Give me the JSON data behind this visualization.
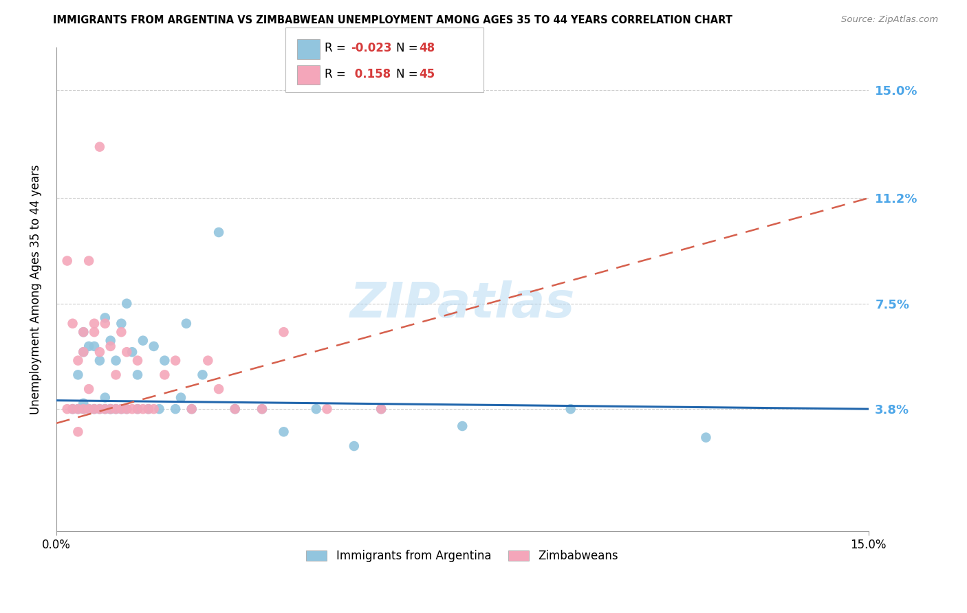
{
  "title": "IMMIGRANTS FROM ARGENTINA VS ZIMBABWEAN UNEMPLOYMENT AMONG AGES 35 TO 44 YEARS CORRELATION CHART",
  "source": "Source: ZipAtlas.com",
  "ylabel": "Unemployment Among Ages 35 to 44 years",
  "xlim": [
    0.0,
    0.15
  ],
  "ylim": [
    -0.005,
    0.165
  ],
  "ytick_labels": [
    "3.8%",
    "7.5%",
    "11.2%",
    "15.0%"
  ],
  "ytick_values": [
    0.038,
    0.075,
    0.112,
    0.15
  ],
  "xtick_labels": [
    "0.0%",
    "15.0%"
  ],
  "xtick_values": [
    0.0,
    0.15
  ],
  "blue_color": "#92c5de",
  "pink_color": "#f4a6ba",
  "line_blue_color": "#2166ac",
  "line_pink_color": "#d6604d",
  "grid_color": "#cccccc",
  "right_label_color": "#4da6e8",
  "argentina_points_x": [
    0.003,
    0.004,
    0.004,
    0.005,
    0.005,
    0.005,
    0.005,
    0.006,
    0.006,
    0.007,
    0.007,
    0.008,
    0.008,
    0.009,
    0.009,
    0.009,
    0.01,
    0.01,
    0.01,
    0.011,
    0.011,
    0.012,
    0.012,
    0.013,
    0.013,
    0.014,
    0.015,
    0.015,
    0.016,
    0.017,
    0.018,
    0.019,
    0.02,
    0.022,
    0.023,
    0.024,
    0.025,
    0.027,
    0.03,
    0.033,
    0.038,
    0.042,
    0.048,
    0.055,
    0.06,
    0.075,
    0.095,
    0.12
  ],
  "argentina_points_y": [
    0.038,
    0.038,
    0.05,
    0.038,
    0.04,
    0.058,
    0.065,
    0.038,
    0.06,
    0.038,
    0.06,
    0.038,
    0.055,
    0.038,
    0.042,
    0.07,
    0.038,
    0.038,
    0.062,
    0.038,
    0.055,
    0.038,
    0.068,
    0.038,
    0.075,
    0.058,
    0.038,
    0.05,
    0.062,
    0.038,
    0.06,
    0.038,
    0.055,
    0.038,
    0.042,
    0.068,
    0.038,
    0.05,
    0.1,
    0.038,
    0.038,
    0.03,
    0.038,
    0.025,
    0.038,
    0.032,
    0.038,
    0.028
  ],
  "zimbabwe_points_x": [
    0.002,
    0.002,
    0.003,
    0.003,
    0.004,
    0.004,
    0.004,
    0.005,
    0.005,
    0.005,
    0.006,
    0.006,
    0.006,
    0.007,
    0.007,
    0.007,
    0.008,
    0.008,
    0.008,
    0.009,
    0.009,
    0.01,
    0.01,
    0.011,
    0.011,
    0.012,
    0.012,
    0.013,
    0.013,
    0.014,
    0.015,
    0.015,
    0.016,
    0.017,
    0.018,
    0.02,
    0.022,
    0.025,
    0.028,
    0.03,
    0.033,
    0.038,
    0.042,
    0.05,
    0.06
  ],
  "zimbabwe_points_y": [
    0.038,
    0.09,
    0.038,
    0.068,
    0.038,
    0.055,
    0.03,
    0.038,
    0.058,
    0.065,
    0.038,
    0.045,
    0.09,
    0.038,
    0.068,
    0.065,
    0.038,
    0.058,
    0.13,
    0.038,
    0.068,
    0.038,
    0.06,
    0.038,
    0.05,
    0.038,
    0.065,
    0.038,
    0.058,
    0.038,
    0.038,
    0.055,
    0.038,
    0.038,
    0.038,
    0.05,
    0.055,
    0.038,
    0.055,
    0.045,
    0.038,
    0.038,
    0.065,
    0.038,
    0.038
  ],
  "watermark": "ZIPatlas",
  "legend_label_argentina": "Immigrants from Argentina",
  "legend_label_zimbabwe": "Zimbabweans",
  "r_blue": "-0.023",
  "n_blue": "48",
  "r_pink": "0.158",
  "n_pink": "45"
}
